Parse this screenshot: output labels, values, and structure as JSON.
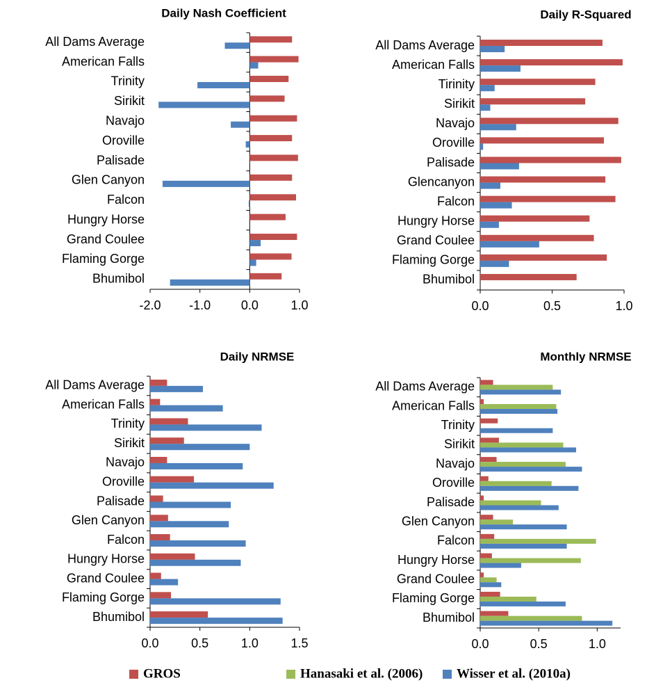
{
  "chart_data": [
    {
      "type": "bar",
      "orientation": "horizontal",
      "title": "Daily Nash Coefficient",
      "categories": [
        "All Dams Average",
        "American Falls",
        "Trinity",
        "Sirikit",
        "Navajo",
        "Oroville",
        "Palisade",
        "Glen Canyon",
        "Falcon",
        "Hungry Horse",
        "Grand Coulee",
        "Flaming Gorge",
        "Bhumibol"
      ],
      "series": [
        {
          "color": "#c0504d",
          "values": [
            0.85,
            0.98,
            0.78,
            0.7,
            0.95,
            0.85,
            0.97,
            0.85,
            0.93,
            0.72,
            0.95,
            0.84,
            0.64
          ]
        },
        {
          "color": "#4f81bd",
          "values": [
            -0.5,
            0.17,
            -1.05,
            -1.83,
            -0.38,
            -0.08,
            0,
            -1.75,
            -0.02,
            0,
            0.22,
            0.13,
            -1.6
          ]
        }
      ],
      "xlim": [
        -2,
        1
      ],
      "xticks": [
        {
          "value": -2,
          "label": "-2.0"
        },
        {
          "value": -1,
          "label": "-1.0"
        },
        {
          "value": 0,
          "label": "0.0"
        },
        {
          "value": 1,
          "label": "1.0"
        }
      ]
    },
    {
      "type": "bar",
      "orientation": "horizontal",
      "title": "Daily R-Squared",
      "categories": [
        "All Dams Average",
        "American Falls",
        "Tirinity",
        "Sirikit",
        "Navajo",
        "Oroville",
        "Palisade",
        "Glencanyon",
        "Falcon",
        "Hungry Horse",
        "Grand Coulee",
        "Flaming Gorge",
        "Bhumibol"
      ],
      "series": [
        {
          "color": "#c0504d",
          "values": [
            0.85,
            0.99,
            0.8,
            0.73,
            0.96,
            0.86,
            0.98,
            0.87,
            0.94,
            0.76,
            0.79,
            0.88,
            0.67
          ]
        },
        {
          "color": "#4f81bd",
          "values": [
            0.17,
            0.28,
            0.1,
            0.07,
            0.25,
            0.02,
            0.27,
            0.14,
            0.22,
            0.13,
            0.41,
            0.2,
            0
          ]
        }
      ],
      "xlim": [
        0,
        1
      ],
      "xticks": [
        {
          "value": 0,
          "label": "0.0"
        },
        {
          "value": 0.5,
          "label": "0.5"
        },
        {
          "value": 1,
          "label": "1.0"
        }
      ]
    },
    {
      "type": "bar",
      "orientation": "horizontal",
      "title": "Daily NRMSE",
      "categories": [
        "All Dams Average",
        "American Falls",
        "Trinity",
        "Sirikit",
        "Navajo",
        "Oroville",
        "Palisade",
        "Glen Canyon",
        "Falcon",
        "Hungry Horse",
        "Grand Coulee",
        "Flaming Gorge",
        "Bhumibol"
      ],
      "series": [
        {
          "color": "#c0504d",
          "values": [
            0.17,
            0.1,
            0.38,
            0.34,
            0.17,
            0.44,
            0.13,
            0.18,
            0.2,
            0.45,
            0.11,
            0.21,
            0.58
          ]
        },
        {
          "color": "#4f81bd",
          "values": [
            0.53,
            0.73,
            1.12,
            1.0,
            0.93,
            1.24,
            0.81,
            0.79,
            0.96,
            0.91,
            0.28,
            1.31,
            1.33
          ]
        }
      ],
      "xlim": [
        0,
        1.5
      ],
      "xticks": [
        {
          "value": 0,
          "label": "0.0"
        },
        {
          "value": 0.5,
          "label": "0.5"
        },
        {
          "value": 1,
          "label": "1.0"
        },
        {
          "value": 1.5,
          "label": "1.5"
        }
      ]
    },
    {
      "type": "bar",
      "orientation": "horizontal",
      "title": "Monthly NRMSE",
      "categories": [
        "All Dams Average",
        "American Falls",
        "Trinity",
        "Sirikit",
        "Navajo",
        "Oroville",
        "Palisade",
        "Glen Canyon",
        "Falcon",
        "Hungry Horse",
        "Grand Coulee",
        "Flaming Gorge",
        "Bhumibol"
      ],
      "series": [
        {
          "name": "GROS",
          "color": "#c0504d",
          "values": [
            0.11,
            0.03,
            0.15,
            0.16,
            0.14,
            0.07,
            0.03,
            0.11,
            0.12,
            0.1,
            0.03,
            0.17,
            0.24
          ]
        },
        {
          "name": "Hanasaki et al. (2006)",
          "color": "#9bbb59",
          "values": [
            0.62,
            0.65,
            null,
            0.71,
            0.73,
            0.61,
            0.52,
            0.28,
            0.99,
            0.86,
            0.14,
            0.48,
            0.87
          ]
        },
        {
          "name": "Wisser et al. (2010a)",
          "color": "#4f81bd",
          "values": [
            0.69,
            0.66,
            0.62,
            0.82,
            0.87,
            0.84,
            0.67,
            0.74,
            0.74,
            0.35,
            0.18,
            0.73,
            1.13
          ]
        }
      ],
      "xlim": [
        0,
        1.2
      ],
      "xticks": [
        {
          "value": 0,
          "label": "0.0"
        },
        {
          "value": 0.5,
          "label": "0.5"
        },
        {
          "value": 1,
          "label": "1.0"
        }
      ]
    }
  ]
}
